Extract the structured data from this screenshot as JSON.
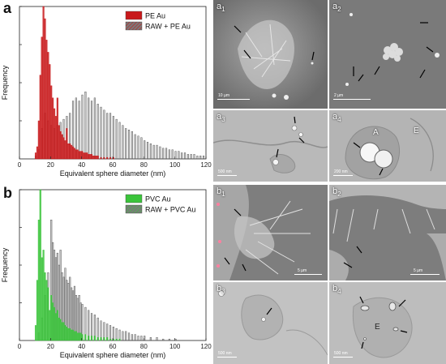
{
  "figure": {
    "panel_a": {
      "letter": "a"
    },
    "panel_b": {
      "letter": "b"
    }
  },
  "chart_data": [
    {
      "type": "bar",
      "xlabel": "Equivalent sphere diameter (nm)",
      "ylabel": "Frequency",
      "xlim": [
        0,
        120
      ],
      "xticks": [
        0,
        20,
        40,
        60,
        80,
        100,
        120
      ],
      "legend_position": "top-right",
      "bin_width": 1,
      "series": [
        {
          "name": "PE Au",
          "color": "#c8191b",
          "x": [
            10,
            11,
            12,
            13,
            14,
            15,
            16,
            17,
            18,
            19,
            20,
            21,
            22,
            23,
            24,
            25,
            26,
            27,
            28,
            29,
            30,
            31,
            32,
            33,
            34,
            35,
            36,
            37,
            38,
            39,
            40,
            41,
            42,
            43,
            44,
            45,
            46,
            47,
            48,
            49,
            50,
            52,
            54,
            56,
            58,
            60
          ],
          "values": [
            0.04,
            0.08,
            0.25,
            0.55,
            0.8,
            1.0,
            0.92,
            0.78,
            0.7,
            0.62,
            0.48,
            0.4,
            0.33,
            0.28,
            0.4,
            0.22,
            0.18,
            0.16,
            0.14,
            0.12,
            0.2,
            0.1,
            0.1,
            0.09,
            0.08,
            0.07,
            0.06,
            0.06,
            0.05,
            0.05,
            0.05,
            0.04,
            0.04,
            0.04,
            0.03,
            0.03,
            0.03,
            0.02,
            0.02,
            0.02,
            0.02,
            0.01,
            0.01,
            0.01,
            0.01,
            0.01
          ]
        },
        {
          "name": "RAW + PE Au",
          "color": "#555555",
          "x": [
            10,
            12,
            14,
            16,
            18,
            20,
            22,
            24,
            26,
            28,
            30,
            32,
            34,
            36,
            38,
            40,
            42,
            44,
            46,
            48,
            50,
            52,
            54,
            56,
            58,
            60,
            62,
            64,
            66,
            68,
            70,
            72,
            74,
            76,
            78,
            80,
            82,
            84,
            86,
            88,
            90,
            92,
            94,
            96,
            98,
            100,
            102,
            104,
            106,
            108,
            110,
            112,
            114,
            116,
            118
          ],
          "values": [
            0.02,
            0.06,
            0.2,
            0.3,
            0.25,
            0.22,
            0.2,
            0.22,
            0.24,
            0.26,
            0.28,
            0.3,
            0.38,
            0.4,
            0.38,
            0.42,
            0.44,
            0.4,
            0.38,
            0.4,
            0.36,
            0.34,
            0.32,
            0.3,
            0.3,
            0.28,
            0.26,
            0.24,
            0.22,
            0.2,
            0.19,
            0.18,
            0.16,
            0.15,
            0.14,
            0.12,
            0.11,
            0.1,
            0.09,
            0.09,
            0.08,
            0.07,
            0.07,
            0.06,
            0.06,
            0.05,
            0.05,
            0.04,
            0.04,
            0.03,
            0.03,
            0.03,
            0.02,
            0.02,
            0.02
          ]
        }
      ]
    },
    {
      "type": "bar",
      "xlabel": "Equivalent sphere diameter (nm)",
      "ylabel": "Frequency",
      "xlim": [
        0,
        120
      ],
      "xticks": [
        0,
        20,
        40,
        60,
        80,
        100,
        120
      ],
      "legend_position": "top-right",
      "bin_width": 1,
      "series": [
        {
          "name": "PVC Au",
          "color": "#3bc43b",
          "x": [
            10,
            11,
            12,
            13,
            14,
            15,
            16,
            17,
            18,
            19,
            20,
            21,
            22,
            23,
            24,
            25,
            26,
            27,
            28,
            29,
            30,
            31,
            32,
            33,
            34,
            35,
            36,
            37,
            38,
            39,
            40,
            42,
            44,
            46,
            48,
            50,
            52,
            54,
            56,
            58,
            60,
            62,
            64
          ],
          "values": [
            0.1,
            0.4,
            0.8,
            1.0,
            0.55,
            0.6,
            0.45,
            0.4,
            0.35,
            0.2,
            0.3,
            0.25,
            0.22,
            0.18,
            0.2,
            0.15,
            0.14,
            0.12,
            0.12,
            0.1,
            0.09,
            0.08,
            0.08,
            0.07,
            0.07,
            0.06,
            0.06,
            0.05,
            0.05,
            0.05,
            0.04,
            0.04,
            0.03,
            0.03,
            0.03,
            0.02,
            0.02,
            0.02,
            0.02,
            0.01,
            0.01,
            0.01,
            0.01
          ]
        },
        {
          "name": "RAW + PVC Au",
          "color": "#555555",
          "x": [
            12,
            14,
            16,
            18,
            20,
            21,
            22,
            23,
            24,
            25,
            26,
            27,
            28,
            29,
            30,
            31,
            32,
            33,
            34,
            35,
            36,
            37,
            38,
            39,
            40,
            42,
            44,
            46,
            48,
            50,
            52,
            54,
            56,
            58,
            60,
            62,
            64,
            66,
            68,
            70,
            72,
            74,
            76,
            78,
            80,
            84,
            88,
            92,
            96,
            100
          ],
          "values": [
            0.05,
            0.15,
            0.3,
            0.45,
            0.8,
            0.65,
            0.6,
            0.55,
            0.58,
            0.5,
            0.6,
            0.45,
            0.42,
            0.48,
            0.4,
            0.38,
            0.42,
            0.35,
            0.33,
            0.36,
            0.3,
            0.28,
            0.3,
            0.25,
            0.24,
            0.22,
            0.2,
            0.18,
            0.17,
            0.15,
            0.13,
            0.12,
            0.11,
            0.1,
            0.09,
            0.08,
            0.07,
            0.06,
            0.06,
            0.05,
            0.04,
            0.04,
            0.03,
            0.03,
            0.03,
            0.02,
            0.02,
            0.01,
            0.01,
            0.01
          ]
        }
      ]
    }
  ],
  "micrographs": {
    "a1": {
      "letter": "a",
      "sub": "1",
      "scale": "10 µm"
    },
    "a2": {
      "letter": "a",
      "sub": "2",
      "scale": "2 µm"
    },
    "a3": {
      "letter": "a",
      "sub": "3",
      "scale": "500 nm"
    },
    "a4": {
      "letter": "a",
      "sub": "4",
      "scale": "200 nm",
      "label_A": "A",
      "label_E": "E"
    },
    "b1": {
      "letter": "b",
      "sub": "1",
      "scale": "5 µm"
    },
    "b2": {
      "letter": "b",
      "sub": "2",
      "scale": "5 µm"
    },
    "b3": {
      "letter": "b",
      "sub": "3",
      "scale": "500 nm"
    },
    "b4": {
      "letter": "b",
      "sub": "4",
      "scale": "500 nm",
      "label_E": "E"
    }
  }
}
